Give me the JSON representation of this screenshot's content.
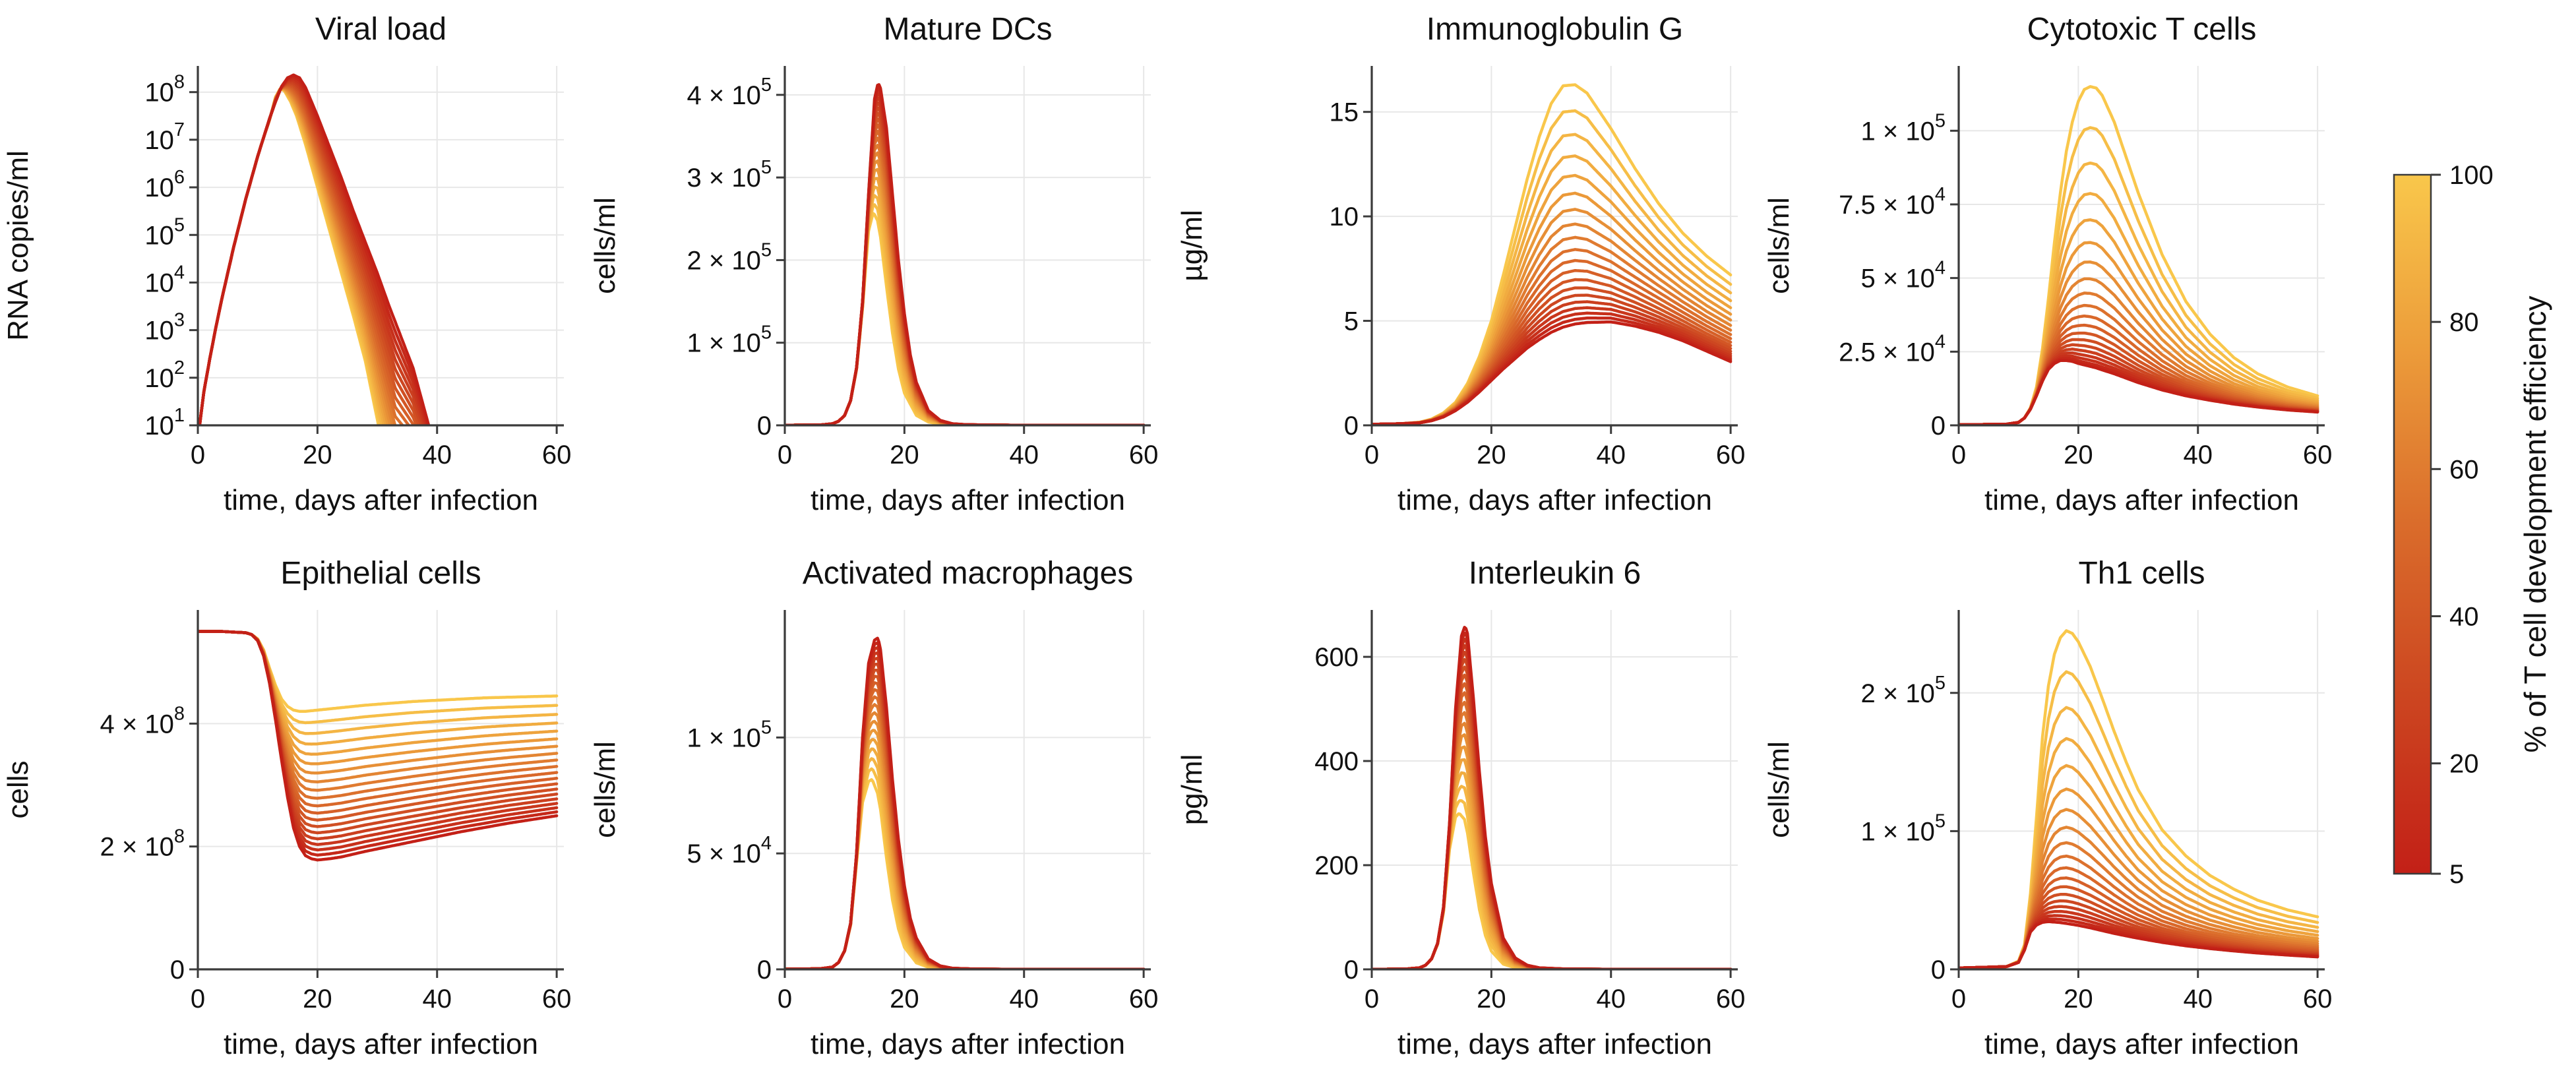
{
  "figure": {
    "background": "#ffffff",
    "text_color": "#111111",
    "spine_color": "#3b3b3b",
    "grid_color": "#e7e7e7",
    "line_width": 4.5,
    "n_curves": 20,
    "efficiencies": [
      5,
      10,
      15,
      20,
      25,
      30,
      35,
      40,
      45,
      50,
      55,
      60,
      65,
      70,
      75,
      80,
      85,
      90,
      95,
      100
    ],
    "colormap_stops": [
      "#C32017",
      "#CC4520",
      "#DA6C2B",
      "#EC9C3A",
      "#F9C74B"
    ],
    "xlabel": "time, days after infection",
    "x_ticks": [
      0,
      20,
      40,
      60
    ],
    "x_tick_labels": [
      "0",
      "20",
      "40",
      "60"
    ],
    "xlim": [
      0,
      61.2
    ]
  },
  "colorbar": {
    "label": "% of T cell development efficiency",
    "vmin": 5,
    "vmax": 100,
    "ticks": [
      {
        "value": 100,
        "label": "100"
      },
      {
        "value": 80,
        "label": "80"
      },
      {
        "value": 60,
        "label": "60"
      },
      {
        "value": 40,
        "label": "40"
      },
      {
        "value": 20,
        "label": "20"
      },
      {
        "value": 5,
        "label": "5"
      }
    ]
  },
  "chart_data": [
    {
      "type": "line",
      "title": "Viral load",
      "ylabel": "RNA copies/ml",
      "scale": "log10",
      "ylim": [
        1,
        8.55
      ],
      "fan_r": 1.0,
      "y_ticks": [
        {
          "value": 1,
          "label": "10^1"
        },
        {
          "value": 2,
          "label": "10^2"
        },
        {
          "value": 3,
          "label": "10^3"
        },
        {
          "value": 4,
          "label": "10^4"
        },
        {
          "value": 5,
          "label": "10^5"
        },
        {
          "value": 6,
          "label": "10^6"
        },
        {
          "value": 7,
          "label": "10^7"
        },
        {
          "value": 8,
          "label": "10^8"
        }
      ],
      "envelope_low_eff": {
        "x": [
          0,
          1,
          2,
          3,
          4,
          5,
          6,
          7,
          8,
          9,
          10,
          11,
          12,
          13,
          14,
          15,
          16,
          17,
          18,
          20,
          22,
          24,
          26,
          28,
          30,
          32,
          34,
          36,
          38.6,
          42
        ],
        "y": [
          0.7,
          1.7,
          2.4,
          3.05,
          3.65,
          4.2,
          4.75,
          5.25,
          5.75,
          6.2,
          6.65,
          7.05,
          7.45,
          7.8,
          8.12,
          8.3,
          8.36,
          8.3,
          8.1,
          7.5,
          6.85,
          6.2,
          5.5,
          4.85,
          4.2,
          3.5,
          2.85,
          2.2,
          1.0,
          -0.6
        ]
      },
      "envelope_high_eff": {
        "x": [
          0,
          1,
          2,
          3,
          4,
          5,
          6,
          7,
          8,
          9,
          10,
          11,
          12,
          13,
          13.8,
          14.5,
          15.5,
          16.5,
          18,
          20,
          22,
          24,
          26,
          28,
          30.2,
          33
        ],
        "y": [
          0.7,
          1.7,
          2.4,
          3.05,
          3.65,
          4.2,
          4.75,
          5.25,
          5.75,
          6.2,
          6.65,
          7.05,
          7.42,
          7.9,
          8.08,
          8.02,
          7.8,
          7.5,
          6.9,
          6.0,
          5.1,
          4.2,
          3.3,
          2.35,
          1.0,
          -0.6
        ]
      }
    },
    {
      "type": "line",
      "title": "Mature DCs",
      "ylabel": "cells/ml",
      "scale": "linear",
      "ylim": [
        0,
        435000
      ],
      "fan_r": 1.06,
      "y_ticks": [
        {
          "value": 0,
          "label": "0"
        },
        {
          "value": 100000,
          "label": "1 × 10^5"
        },
        {
          "value": 200000,
          "label": "2 × 10^5"
        },
        {
          "value": 300000,
          "label": "3 × 10^5"
        },
        {
          "value": 400000,
          "label": "4 × 10^5"
        }
      ],
      "envelope_low_eff": {
        "x": [
          0,
          6,
          8,
          9,
          10,
          11,
          12,
          13,
          14,
          15,
          15.6,
          16,
          17,
          18,
          19,
          20,
          21,
          22,
          24,
          26,
          28,
          30,
          34,
          40,
          60
        ],
        "y": [
          200,
          500,
          2000,
          5000,
          12000,
          30000,
          70000,
          150000,
          280000,
          395000,
          415000,
          408000,
          360000,
          280000,
          200000,
          135000,
          85000,
          52000,
          18000,
          6000,
          2000,
          1000,
          400,
          200,
          100
        ]
      },
      "envelope_high_eff": {
        "x": [
          0,
          6,
          8,
          9,
          10,
          11,
          12,
          13,
          14,
          14.8,
          15.5,
          16,
          17,
          18,
          19,
          20,
          22,
          24,
          26,
          30,
          40,
          60
        ],
        "y": [
          200,
          500,
          2000,
          5000,
          12000,
          30000,
          68000,
          142000,
          235000,
          258000,
          248000,
          228000,
          168000,
          112000,
          68000,
          39000,
          12000,
          4000,
          1500,
          400,
          150,
          80
        ]
      }
    },
    {
      "type": "line",
      "title": "Immunoglobulin G",
      "ylabel": "µg/ml",
      "scale": "linear",
      "ylim": [
        0,
        17.2
      ],
      "fan_r": 1.1,
      "y_ticks": [
        {
          "value": 0,
          "label": "0"
        },
        {
          "value": 5,
          "label": "5"
        },
        {
          "value": 10,
          "label": "10"
        },
        {
          "value": 15,
          "label": "15"
        }
      ],
      "envelope_low_eff": {
        "x": [
          0,
          5,
          8,
          10,
          12,
          14,
          16,
          18,
          20,
          22,
          24,
          26,
          28,
          30,
          32,
          34,
          36,
          40,
          44,
          48,
          52,
          56,
          60
        ],
        "y": [
          0.05,
          0.08,
          0.12,
          0.22,
          0.4,
          0.7,
          1.1,
          1.6,
          2.15,
          2.7,
          3.2,
          3.7,
          4.1,
          4.45,
          4.7,
          4.85,
          4.92,
          4.95,
          4.75,
          4.45,
          4.05,
          3.55,
          3.05
        ]
      },
      "envelope_high_eff": {
        "x": [
          0,
          5,
          8,
          10,
          12,
          14,
          16,
          18,
          20,
          22,
          24,
          26,
          28,
          30,
          32,
          34,
          36,
          40,
          44,
          48,
          52,
          56,
          60
        ],
        "y": [
          0.05,
          0.08,
          0.15,
          0.3,
          0.6,
          1.1,
          2.0,
          3.3,
          5.0,
          7.2,
          9.5,
          11.8,
          13.8,
          15.4,
          16.25,
          16.3,
          15.9,
          14.2,
          12.3,
          10.6,
          9.2,
          8.1,
          7.2
        ]
      }
    },
    {
      "type": "line",
      "title": "Cytotoxic T cells",
      "ylabel": "cells/ml",
      "scale": "linear",
      "ylim": [
        0,
        122000
      ],
      "fan_r": 1.16,
      "y_ticks": [
        {
          "value": 0,
          "label": "0"
        },
        {
          "value": 25000,
          "label": "2.5 × 10^4"
        },
        {
          "value": 50000,
          "label": "5 × 10^4"
        },
        {
          "value": 75000,
          "label": "7.5 × 10^4"
        },
        {
          "value": 100000,
          "label": "1 × 10^5"
        }
      ],
      "envelope_low_eff": {
        "x": [
          0,
          8,
          10,
          11,
          12,
          13,
          14,
          15,
          16,
          17,
          18,
          19,
          20,
          21,
          22,
          23,
          24,
          26,
          28,
          30,
          34,
          38,
          42,
          46,
          50,
          55,
          60
        ],
        "y": [
          200,
          400,
          1000,
          2500,
          5500,
          10000,
          15000,
          19000,
          21000,
          22000,
          22000,
          21700,
          21000,
          20500,
          20000,
          19500,
          18800,
          17500,
          16000,
          14500,
          12000,
          10000,
          8500,
          7200,
          6200,
          5200,
          4500
        ]
      },
      "envelope_high_eff": {
        "x": [
          0,
          8,
          10,
          11,
          12,
          13,
          14,
          15,
          16,
          17,
          18,
          19,
          20,
          21,
          22,
          23,
          24,
          26,
          28,
          30,
          34,
          38,
          42,
          46,
          50,
          55,
          60
        ],
        "y": [
          200,
          400,
          1000,
          2500,
          6000,
          13000,
          26000,
          43000,
          62000,
          79000,
          93000,
          103000,
          110000,
          114000,
          115000,
          114500,
          112000,
          103000,
          91000,
          79000,
          58000,
          42000,
          31000,
          23000,
          17500,
          13000,
          10000
        ]
      }
    },
    {
      "type": "line",
      "title": "Epithelial cells",
      "ylabel": "cells",
      "scale": "linear",
      "ylim": [
        0,
        585000000.0
      ],
      "fan_r": 1.05,
      "y_ticks": [
        {
          "value": 0,
          "label": "0"
        },
        {
          "value": 200000000.0,
          "label": "2 × 10^8"
        },
        {
          "value": 400000000.0,
          "label": "4 × 10^8"
        }
      ],
      "envelope_low_eff": {
        "x": [
          0,
          4,
          8,
          9,
          10,
          11,
          12,
          13,
          14,
          15,
          16,
          17,
          18,
          19,
          20,
          22,
          24,
          28,
          32,
          36,
          40,
          44,
          48,
          52,
          56,
          60
        ],
        "y": [
          550000000.0,
          550000000.0,
          548000000.0,
          545000000.0,
          535000000.0,
          510000000.0,
          465000000.0,
          405000000.0,
          340000000.0,
          280000000.0,
          230000000.0,
          200000000.0,
          185000000.0,
          180000000.0,
          178000000.0,
          180000000.0,
          183000000.0,
          192000000.0,
          200000000.0,
          208000000.0,
          216000000.0,
          224000000.0,
          231000000.0,
          238000000.0,
          244000000.0,
          250000000.0
        ]
      },
      "envelope_high_eff": {
        "x": [
          0,
          4,
          8,
          9,
          10,
          11,
          12,
          13,
          14,
          15,
          16,
          17,
          18,
          19,
          20,
          22,
          24,
          28,
          32,
          36,
          40,
          44,
          48,
          52,
          56,
          60
        ],
        "y": [
          550000000.0,
          550000000.0,
          548000000.0,
          545000000.0,
          538000000.0,
          520000000.0,
          490000000.0,
          462000000.0,
          440000000.0,
          428000000.0,
          422000000.0,
          420000000.0,
          420000000.0,
          421000000.0,
          422000000.0,
          424000000.0,
          426000000.0,
          430000000.0,
          433000000.0,
          436000000.0,
          438000000.0,
          440000000.0,
          442000000.0,
          443000000.0,
          444000000.0,
          445000000.0
        ]
      }
    },
    {
      "type": "line",
      "title": "Activated macrophages",
      "ylabel": "cells/ml",
      "scale": "linear",
      "ylim": [
        0,
        155000
      ],
      "fan_r": 1.06,
      "y_ticks": [
        {
          "value": 0,
          "label": "0"
        },
        {
          "value": 50000,
          "label": "5 × 10^4"
        },
        {
          "value": 100000,
          "label": "1 × 10^5"
        }
      ],
      "envelope_low_eff": {
        "x": [
          0,
          6,
          8,
          9,
          10,
          11,
          12,
          13,
          14,
          15,
          15.6,
          16,
          17,
          18,
          19,
          20,
          21,
          22,
          24,
          26,
          28,
          32,
          40,
          60
        ],
        "y": [
          100,
          300,
          1000,
          3000,
          8000,
          20000,
          50000,
          100000,
          132000,
          142000,
          143000,
          138000,
          113000,
          82000,
          56000,
          36000,
          22000,
          13500,
          4500,
          1500,
          500,
          150,
          50,
          30
        ]
      },
      "envelope_high_eff": {
        "x": [
          0,
          6,
          8,
          9,
          10,
          11,
          12,
          13,
          14,
          14.6,
          15.5,
          16,
          17,
          18,
          19,
          20,
          22,
          24,
          26,
          30,
          40,
          60
        ],
        "y": [
          100,
          300,
          1000,
          3000,
          8000,
          19000,
          46000,
          72000,
          81000,
          82000,
          76000,
          69000,
          48000,
          30000,
          17500,
          9500,
          2800,
          900,
          300,
          80,
          30,
          20
        ]
      }
    },
    {
      "type": "line",
      "title": "Interleukin 6",
      "ylabel": "pg/ml",
      "scale": "linear",
      "ylim": [
        0,
        690
      ],
      "fan_r": 1.06,
      "y_ticks": [
        {
          "value": 0,
          "label": "0"
        },
        {
          "value": 200,
          "label": "200"
        },
        {
          "value": 400,
          "label": "400"
        },
        {
          "value": 600,
          "label": "600"
        }
      ],
      "envelope_low_eff": {
        "x": [
          0,
          6,
          8,
          9,
          10,
          11,
          12,
          13,
          14,
          15,
          15.6,
          16,
          17,
          18,
          19,
          20,
          22,
          24,
          26,
          28,
          32,
          40,
          60
        ],
        "y": [
          0,
          1,
          3,
          8,
          20,
          50,
          120,
          280,
          500,
          640,
          660,
          645,
          520,
          380,
          255,
          165,
          60,
          22,
          8,
          3,
          1,
          0.3,
          0.1
        ]
      },
      "envelope_high_eff": {
        "x": [
          0,
          6,
          8,
          9,
          10,
          11,
          12,
          13,
          14,
          14.6,
          15.5,
          16,
          17,
          18,
          19,
          20,
          22,
          24,
          26,
          30,
          40,
          60
        ],
        "y": [
          0,
          1,
          3,
          8,
          20,
          48,
          110,
          230,
          292,
          300,
          288,
          262,
          185,
          115,
          65,
          35,
          10,
          3,
          1,
          0.3,
          0.1,
          0.05
        ]
      }
    },
    {
      "type": "line",
      "title": "Th1 cells",
      "ylabel": "cells/ml",
      "scale": "linear",
      "ylim": [
        0,
        260000
      ],
      "fan_r": 1.15,
      "y_ticks": [
        {
          "value": 0,
          "label": "0"
        },
        {
          "value": 100000,
          "label": "1 × 10^5"
        },
        {
          "value": 200000,
          "label": "2 × 10^5"
        }
      ],
      "envelope_low_eff": {
        "x": [
          0,
          8,
          10,
          11,
          12,
          13,
          14,
          15,
          16,
          17,
          18,
          19,
          20,
          22,
          24,
          26,
          28,
          30,
          34,
          38,
          42,
          46,
          50,
          55,
          60
        ],
        "y": [
          1000,
          2000,
          5000,
          14000,
          27000,
          32000,
          34000,
          34500,
          34200,
          33800,
          33200,
          32500,
          31800,
          30000,
          28000,
          26000,
          24200,
          22500,
          19500,
          17000,
          15000,
          13300,
          11800,
          10300,
          9000
        ]
      },
      "envelope_high_eff": {
        "x": [
          0,
          8,
          10,
          11,
          12,
          13,
          14,
          15,
          16,
          17,
          18,
          19,
          20,
          22,
          24,
          26,
          28,
          30,
          34,
          38,
          42,
          46,
          50,
          55,
          60
        ],
        "y": [
          1000,
          2000,
          6000,
          18000,
          55000,
          110000,
          168000,
          205000,
          228000,
          240000,
          245000,
          243000,
          237000,
          219000,
          196000,
          172000,
          150000,
          130000,
          101000,
          82000,
          68000,
          58000,
          50000,
          43000,
          38000
        ]
      }
    }
  ]
}
